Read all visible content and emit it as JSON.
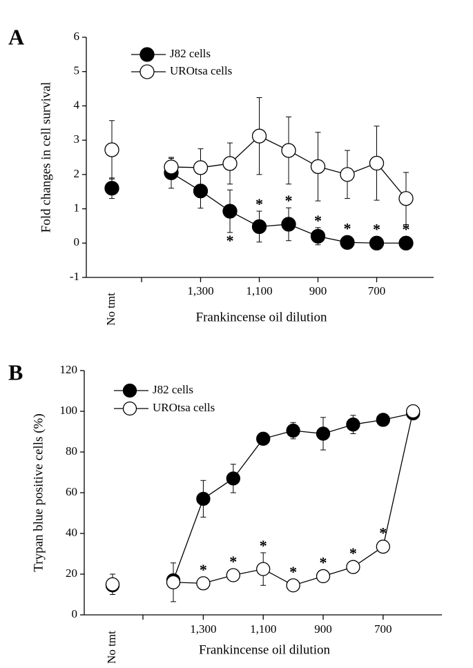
{
  "chart_data": [
    {
      "type": "line",
      "panel": "A",
      "ylabel": "Fold changes in cell survival",
      "xlabel": "Frankincense oil dilution",
      "categories": [
        "No tmt",
        null,
        "1,300",
        null,
        "1,100",
        null,
        "900",
        null,
        "700",
        null
      ],
      "ylim": [
        -1,
        6
      ],
      "yticks": [
        -1,
        0,
        1,
        2,
        3,
        4,
        5,
        6
      ],
      "series": [
        {
          "name": "J82 cells",
          "color": "#000000",
          "marker_fill": "#000000",
          "values": [
            1.6,
            2.05,
            1.52,
            0.93,
            0.48,
            0.55,
            0.2,
            0.02,
            0,
            0
          ],
          "errors": [
            0.3,
            0.45,
            0.5,
            0.62,
            0.45,
            0.48,
            0.25,
            null,
            null,
            null
          ],
          "annotations": [
            null,
            null,
            null,
            "*",
            "*",
            "*",
            "*",
            "*",
            "*",
            "*"
          ]
        },
        {
          "name": "UROtsa cells",
          "color": "#000000",
          "marker_fill": "#ffffff",
          "values": [
            2.72,
            2.22,
            2.2,
            2.32,
            3.12,
            2.7,
            2.23,
            2.0,
            2.33,
            1.3
          ],
          "errors": [
            0.85,
            0.25,
            0.55,
            0.6,
            1.12,
            0.98,
            1.0,
            0.7,
            1.08,
            0.76
          ],
          "annotations": [
            null,
            null,
            null,
            null,
            null,
            null,
            null,
            null,
            null,
            null
          ]
        }
      ]
    },
    {
      "type": "line",
      "panel": "B",
      "ylabel": "Trypan blue positive cells (%)",
      "xlabel": "Frankincense oil dilution",
      "categories": [
        "No tmt",
        null,
        "1,300",
        null,
        "1,100",
        null,
        "900",
        null,
        "700",
        null
      ],
      "ylim": [
        0,
        120
      ],
      "yticks": [
        0,
        20,
        40,
        60,
        80,
        100,
        120
      ],
      "series": [
        {
          "name": "J82 cells",
          "color": "#000000",
          "marker_fill": "#000000",
          "values": [
            14.5,
            17,
            57,
            67,
            86.5,
            90.5,
            89,
            93.5,
            95.8,
            99
          ],
          "errors": [
            null,
            null,
            9,
            7,
            null,
            4,
            8,
            4.5,
            null,
            null
          ],
          "annotations": [
            null,
            null,
            null,
            null,
            null,
            null,
            null,
            null,
            null,
            null
          ]
        },
        {
          "name": "UROtsa cells",
          "color": "#000000",
          "marker_fill": "#ffffff",
          "values": [
            15,
            16,
            15.5,
            19.5,
            22.5,
            14.5,
            19,
            23.5,
            33.5,
            100
          ],
          "errors": [
            5,
            9.5,
            3,
            null,
            8,
            null,
            null,
            null,
            null,
            null
          ],
          "annotations": [
            null,
            null,
            "*",
            "*",
            "*",
            "*",
            "*",
            "*",
            "*",
            null
          ]
        }
      ]
    }
  ]
}
